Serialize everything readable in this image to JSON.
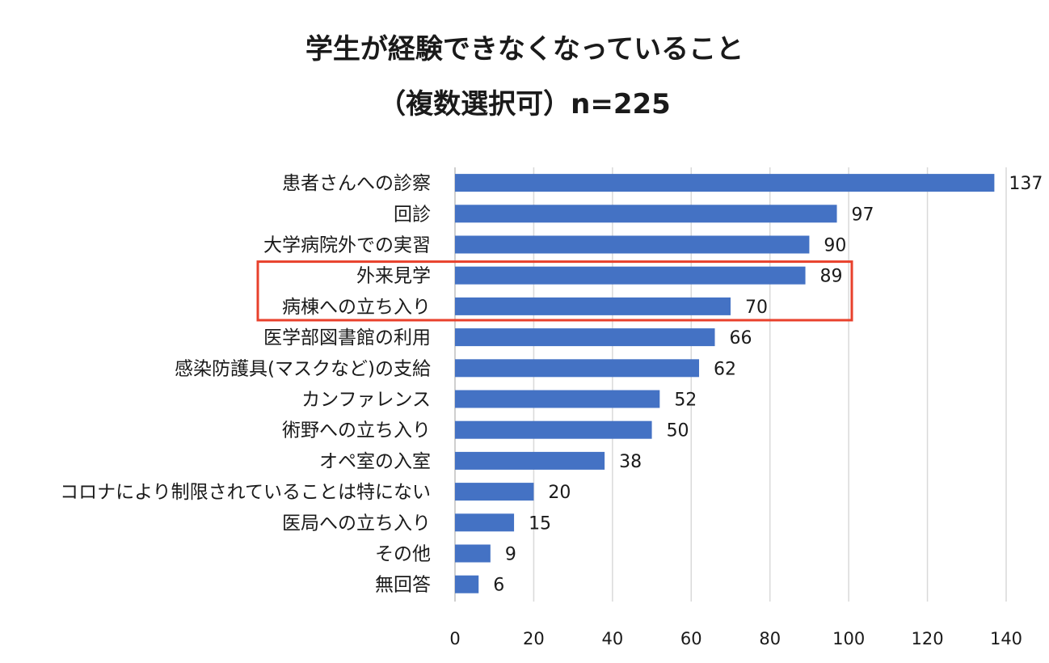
{
  "chart_data": {
    "type": "bar",
    "orientation": "horizontal",
    "title": "学生が経験できなくなっていること",
    "subtitle": "（複数選択可）n=225",
    "categories": [
      "患者さんへの診察",
      "回診",
      "大学病院外での実習",
      "外来見学",
      "病棟への立ち入り",
      "医学部図書館の利用",
      "感染防護具(マスクなど)の支給",
      "カンファレンス",
      "術野への立ち入り",
      "オペ室の入室",
      "コロナにより制限されていることは特にない",
      "医局への立ち入り",
      "その他",
      "無回答"
    ],
    "values": [
      137,
      97,
      90,
      89,
      70,
      66,
      62,
      52,
      50,
      38,
      20,
      15,
      9,
      6
    ],
    "xlim": [
      0,
      140
    ],
    "xticks": [
      0,
      20,
      40,
      60,
      80,
      100,
      120,
      140
    ],
    "grid": true,
    "data_labels": true,
    "highlighted_categories": [
      "外来見学",
      "病棟への立ち入り"
    ],
    "colors": {
      "bar": "#4472c4",
      "highlight_box": "#e8412c",
      "grid": "#d9d9d9"
    }
  }
}
